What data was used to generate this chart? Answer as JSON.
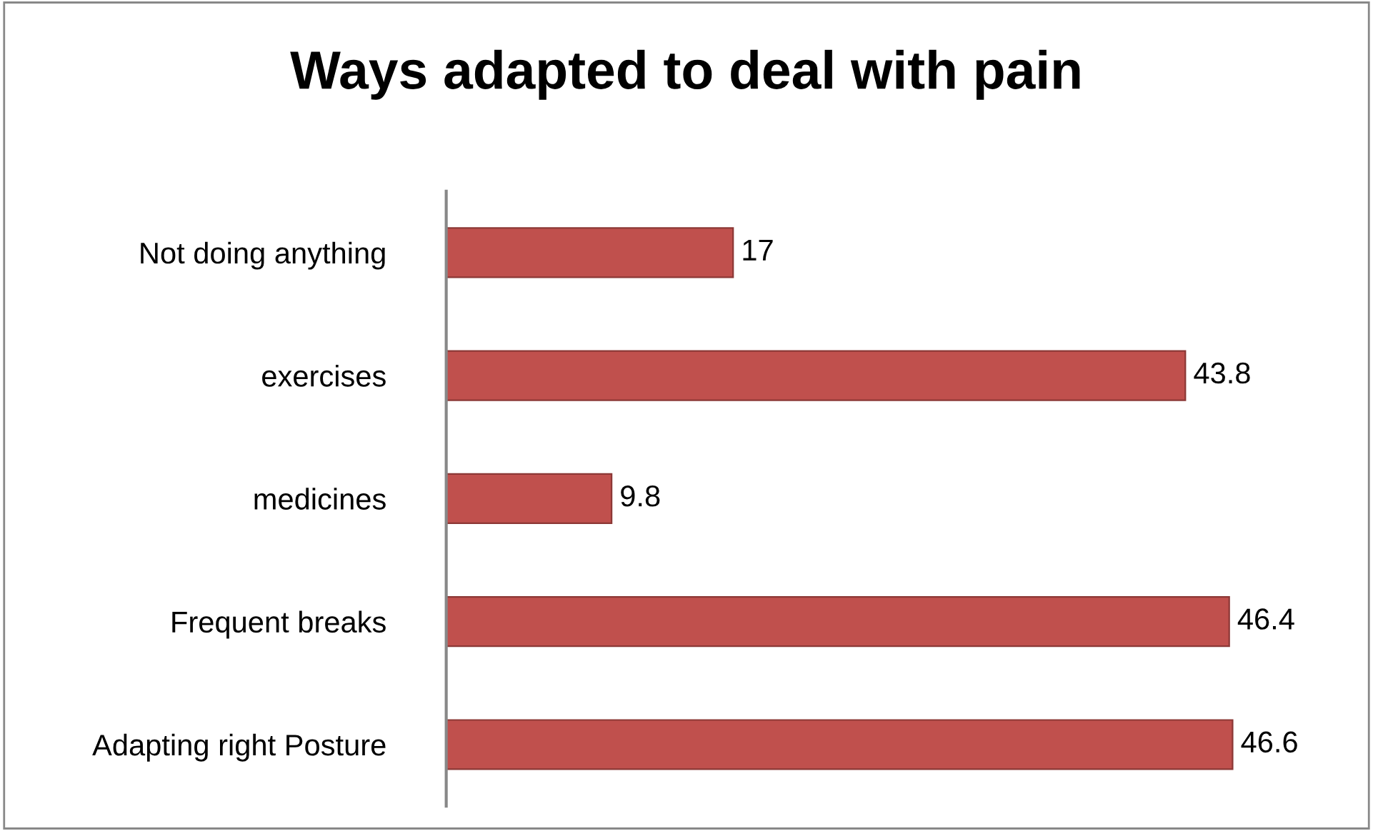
{
  "chart_data": {
    "type": "bar",
    "orientation": "horizontal",
    "title": "Ways adapted to deal with pain",
    "categories": [
      "Not doing anything",
      "exercises",
      "medicines",
      "Frequent breaks",
      "Adapting right Posture"
    ],
    "values": [
      17,
      43.8,
      9.8,
      46.4,
      46.6
    ],
    "color": "#c0504d",
    "data_labels": true,
    "grid": false,
    "legend": false
  }
}
